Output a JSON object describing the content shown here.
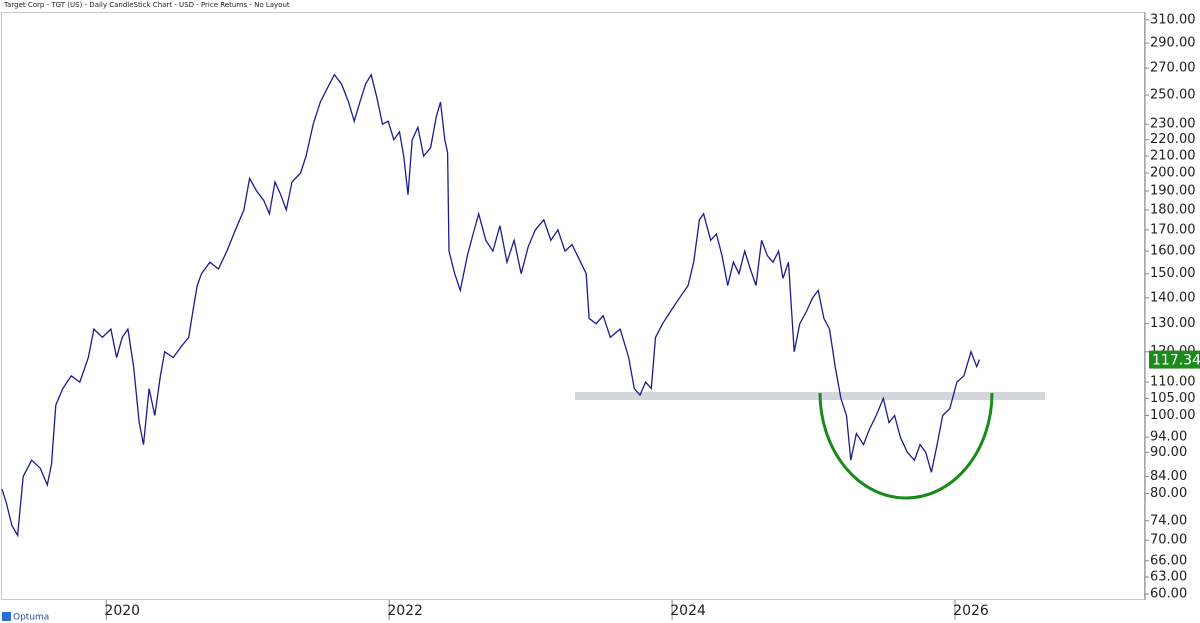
{
  "chart_data": {
    "type": "line",
    "title": "Target Corp - TGT (US) - Daily CandleStick Chart - USD - Price Returns - No Layout",
    "logo": "Optuma",
    "log_scale": true,
    "xlim": [
      2019.15,
      2027.23
    ],
    "xticks": [
      2020,
      2022,
      2024,
      2026
    ],
    "ylim": [
      59,
      317
    ],
    "yticks": [
      {
        "value": 60,
        "label": "60.00"
      },
      {
        "value": 63,
        "label": "63.00"
      },
      {
        "value": 66,
        "label": "66.00"
      },
      {
        "value": 70,
        "label": "70.00"
      },
      {
        "value": 74,
        "label": "74.00"
      },
      {
        "value": 80,
        "label": "80.00"
      },
      {
        "value": 84,
        "label": "84.00"
      },
      {
        "value": 90,
        "label": "90.00"
      },
      {
        "value": 94,
        "label": "94.00"
      },
      {
        "value": 100,
        "label": "100.00"
      },
      {
        "value": 105,
        "label": "105.00"
      },
      {
        "value": 110,
        "label": "110.00"
      },
      {
        "value": 120,
        "label": "120.00"
      },
      {
        "value": 130,
        "label": "130.00"
      },
      {
        "value": 140,
        "label": "140.00"
      },
      {
        "value": 150,
        "label": "150.00"
      },
      {
        "value": 160,
        "label": "160.00"
      },
      {
        "value": 170,
        "label": "170.00"
      },
      {
        "value": 180,
        "label": "180.00"
      },
      {
        "value": 190,
        "label": "190.00"
      },
      {
        "value": 200,
        "label": "200.00"
      },
      {
        "value": 210,
        "label": "210.00"
      },
      {
        "value": 220,
        "label": "220.00"
      },
      {
        "value": 230,
        "label": "230.00"
      },
      {
        "value": 250,
        "label": "250.00"
      },
      {
        "value": 270,
        "label": "270.00"
      },
      {
        "value": 290,
        "label": "290.00"
      },
      {
        "value": 310,
        "label": "310.00"
      }
    ],
    "last_price": 117.34,
    "last_price_color": "#1e8a1e",
    "series": [
      {
        "color": "#1c1c8f",
        "x": [
          2019.15,
          2019.18,
          2019.22,
          2019.26,
          2019.3,
          2019.36,
          2019.42,
          2019.47,
          2019.5,
          2019.53,
          2019.58,
          2019.64,
          2019.7,
          2019.76,
          2019.8,
          2019.86,
          2019.92,
          2019.96,
          2020.0,
          2020.04,
          2020.08,
          2020.12,
          2020.15,
          2020.19,
          2020.23,
          2020.27,
          2020.3,
          2020.36,
          2020.42,
          2020.47,
          2020.5,
          2020.53,
          2020.56,
          2020.62,
          2020.68,
          2020.74,
          2020.8,
          2020.86,
          2020.9,
          2020.95,
          2021.0,
          2021.04,
          2021.08,
          2021.12,
          2021.16,
          2021.2,
          2021.26,
          2021.3,
          2021.35,
          2021.4,
          2021.45,
          2021.5,
          2021.55,
          2021.6,
          2021.64,
          2021.68,
          2021.72,
          2021.76,
          2021.8,
          2021.84,
          2021.88,
          2021.92,
          2021.96,
          2021.99,
          2022.02,
          2022.05,
          2022.09,
          2022.13,
          2022.18,
          2022.22,
          2022.25,
          2022.28,
          2022.3,
          2022.31,
          2022.35,
          2022.39,
          2022.44,
          2022.48,
          2022.52,
          2022.57,
          2022.62,
          2022.67,
          2022.72,
          2022.77,
          2022.82,
          2022.87,
          2022.92,
          2022.98,
          2023.03,
          2023.08,
          2023.13,
          2023.18,
          2023.24,
          2023.28,
          2023.3,
          2023.35,
          2023.4,
          2023.45,
          2023.52,
          2023.58,
          2023.62,
          2023.66,
          2023.7,
          2023.74,
          2023.77,
          2023.82,
          2023.88,
          2023.94,
          2024.0,
          2024.04,
          2024.08,
          2024.11,
          2024.16,
          2024.2,
          2024.24,
          2024.28,
          2024.32,
          2024.36,
          2024.4,
          2024.44,
          2024.48,
          2024.52,
          2024.56,
          2024.6,
          2024.64,
          2024.67,
          2024.71,
          2024.75,
          2024.79,
          2024.84,
          2024.88,
          2024.92,
          2024.96,
          2025.0,
          2025.04,
          2025.08,
          2025.12,
          2025.15,
          2025.19,
          2025.24,
          2025.28,
          2025.33,
          2025.38,
          2025.42,
          2025.46,
          2025.5,
          2025.55,
          2025.6,
          2025.64,
          2025.68,
          2025.72,
          2025.76,
          2025.8,
          2025.85,
          2025.9,
          2025.95,
          2026.0,
          2026.04,
          2026.06
        ],
        "values": [
          81,
          78,
          73,
          71,
          84,
          88,
          86,
          82,
          87,
          103,
          108,
          112,
          110,
          118,
          128,
          125,
          128,
          118,
          125,
          128,
          115,
          98,
          92,
          108,
          100,
          112,
          120,
          118,
          122,
          125,
          135,
          145,
          150,
          155,
          152,
          160,
          170,
          180,
          197,
          190,
          185,
          178,
          195,
          188,
          180,
          195,
          200,
          210,
          230,
          245,
          255,
          265,
          258,
          245,
          232,
          245,
          258,
          265,
          248,
          230,
          232,
          220,
          225,
          210,
          188,
          220,
          228,
          210,
          215,
          235,
          245,
          220,
          212,
          160,
          150,
          143,
          158,
          168,
          178,
          165,
          160,
          172,
          155,
          165,
          150,
          162,
          170,
          175,
          165,
          170,
          160,
          163,
          155,
          150,
          132,
          130,
          133,
          125,
          128,
          118,
          108,
          106,
          110,
          108,
          125,
          130,
          135,
          140,
          145,
          155,
          175,
          178,
          165,
          168,
          158,
          145,
          155,
          150,
          160,
          152,
          145,
          165,
          158,
          155,
          160,
          148,
          155,
          120,
          130,
          135,
          140,
          143,
          132,
          128,
          115,
          105,
          100,
          88,
          95,
          92,
          96,
          100,
          105,
          98,
          100,
          94,
          90,
          88,
          92,
          90,
          85,
          92,
          100,
          102,
          110,
          112,
          120,
          115,
          117.34
        ]
      }
    ]
  }
}
